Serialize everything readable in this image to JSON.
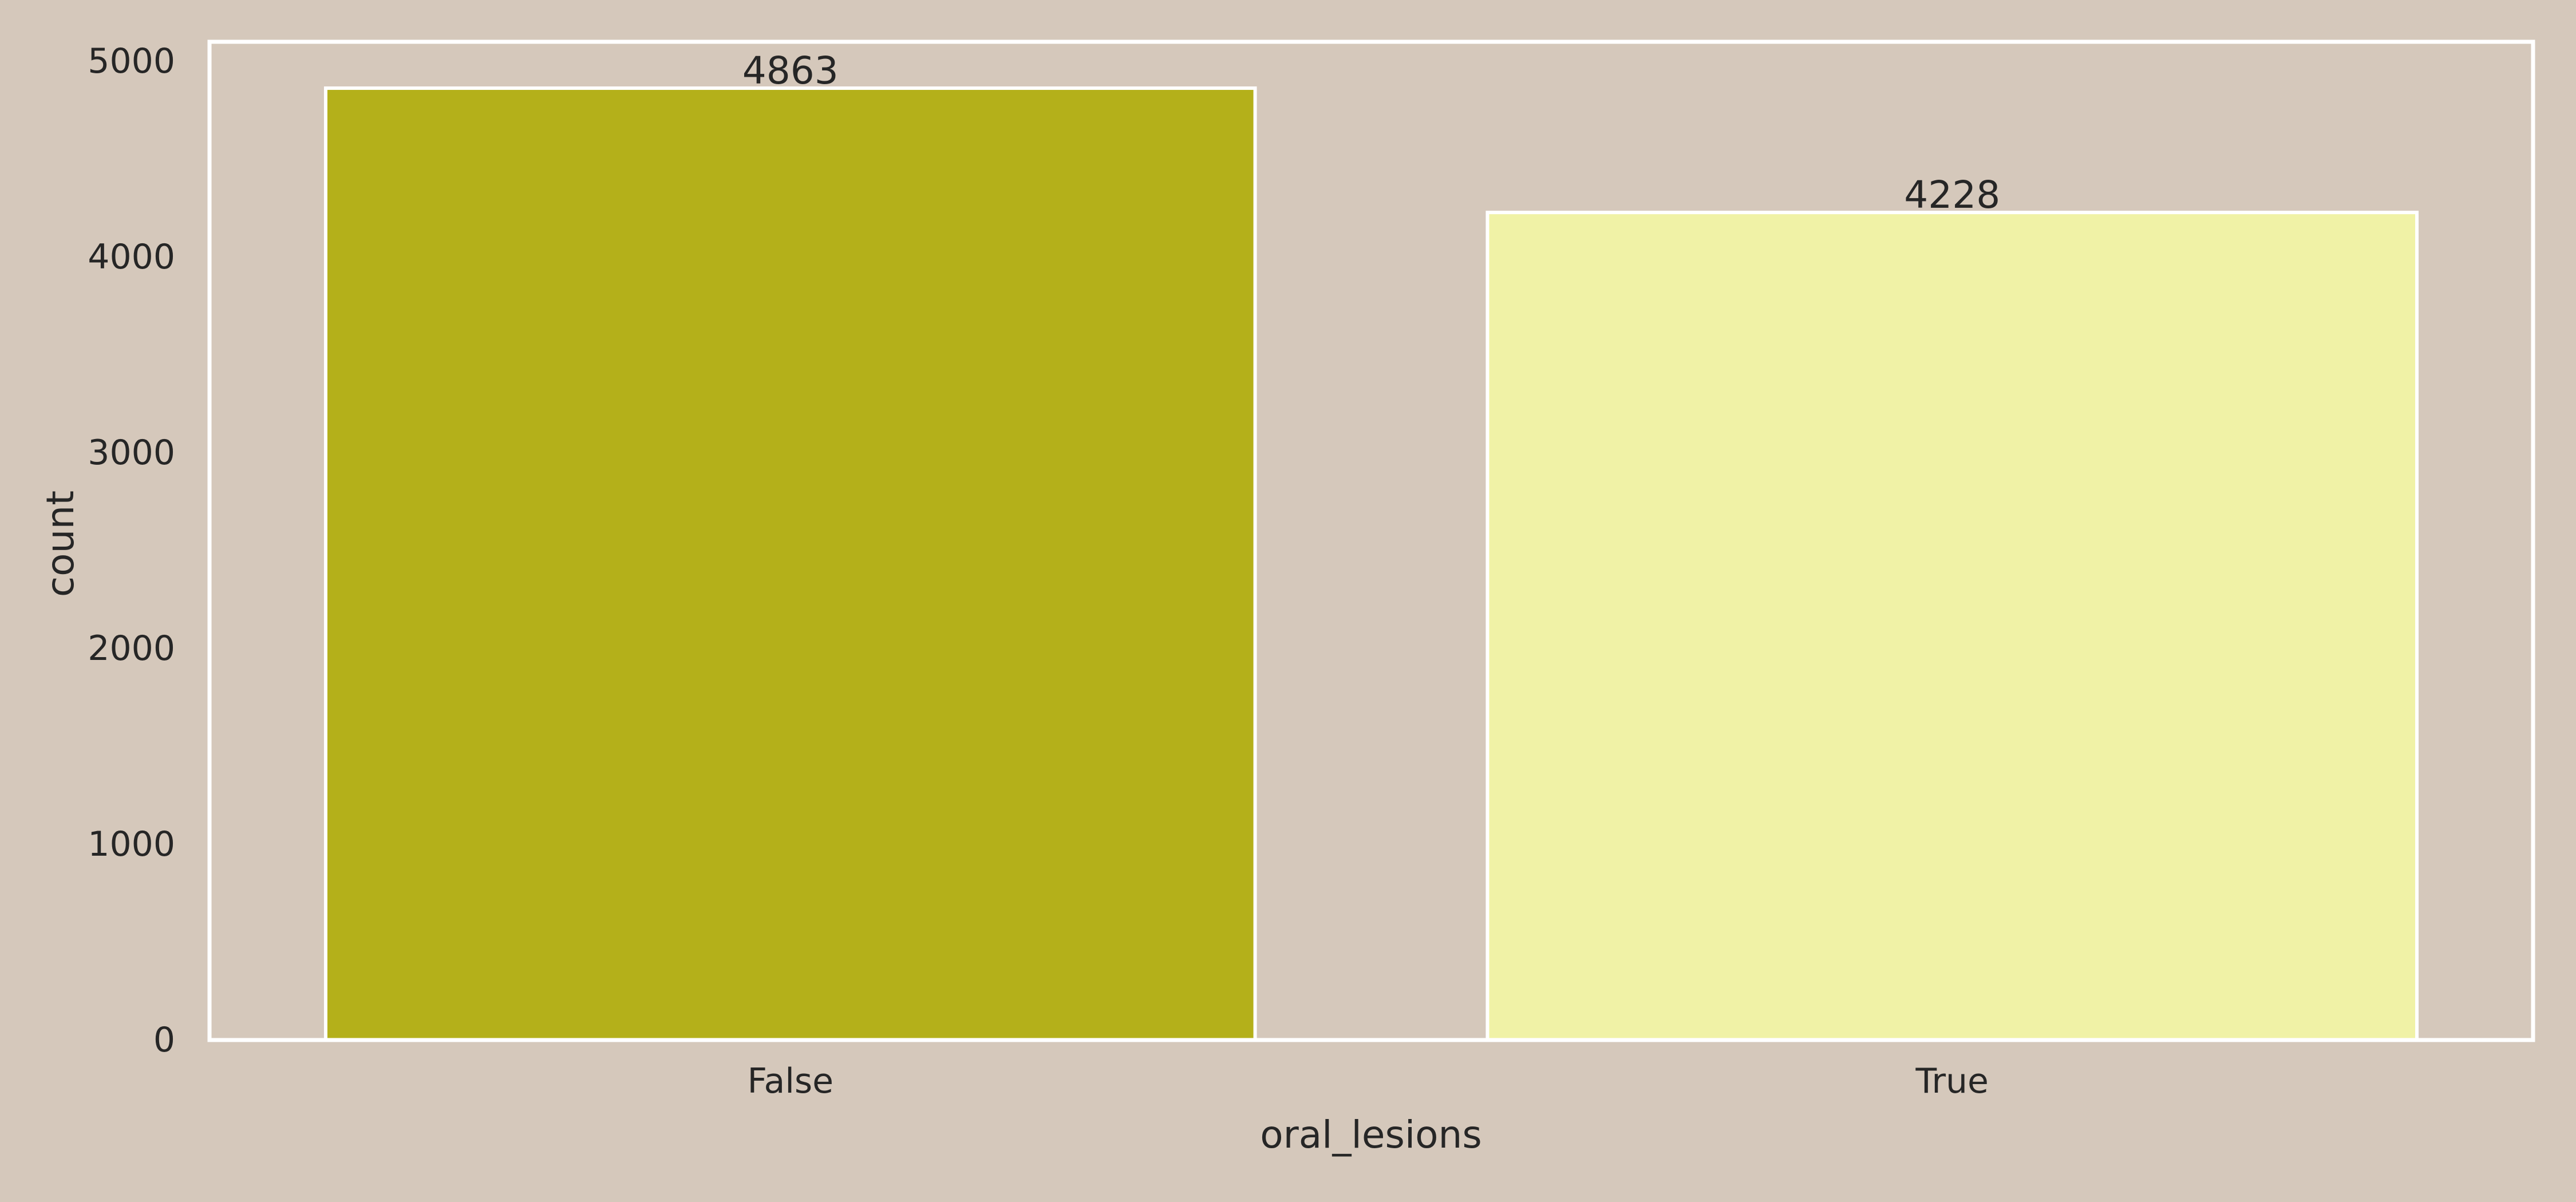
{
  "chart_data": {
    "type": "bar",
    "title": "",
    "xlabel": "oral_lesions",
    "ylabel": "count",
    "categories": [
      "False",
      "True"
    ],
    "values": [
      4863,
      4228
    ],
    "data_labels": [
      "4863",
      "4228"
    ],
    "bar_colors": [
      "#b4b01a",
      "#f0f2a6"
    ],
    "ylim": [
      0,
      5100
    ],
    "yticks": [
      0,
      1000,
      2000,
      3000,
      4000,
      5000
    ],
    "ytick_labels": [
      "0",
      "1000",
      "2000",
      "3000",
      "4000",
      "5000"
    ],
    "grid": false,
    "legend": "none",
    "background_color": "#d5c8bb",
    "edge_color": "#ffffff"
  }
}
